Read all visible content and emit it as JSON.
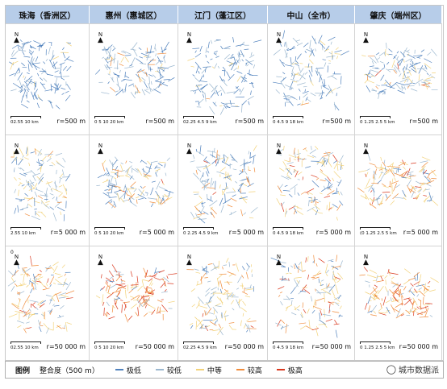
{
  "columns": [
    {
      "title": "珠海（香洲区）"
    },
    {
      "title": "惠州（惠城区）"
    },
    {
      "title": "江门（蓬江区）"
    },
    {
      "title": "中山（全市）"
    },
    {
      "title": "肇庆（端州区）"
    }
  ],
  "rows": [
    {
      "radius": "r=500 m",
      "scales": [
        "02.55    10 km",
        "0 5 10    20 km",
        "02.25 4.5 9 km",
        "0 4.5 9    18 km",
        "0 1.25 2.5 5 km"
      ]
    },
    {
      "radius": "r=5 000 m",
      "scales": [
        "2.55    10 km",
        "0 5 10    20 km",
        "0 2.25 4.5 9 km",
        "0 4.5 9    18 km",
        "(0 1.25 2.5 5 km"
      ]
    },
    {
      "radius": "r=50 000 m",
      "scales": [
        "02.55    10 km",
        "0 5 10    20 km",
        "02.25 4.5 9 km",
        "0 4.5 9    18 km",
        "0 1.25 2.5 5 km"
      ]
    }
  ],
  "radius_labels": {
    "c0r0": "r=500 m",
    "c1r0": "r=500 m",
    "c2r0": "r=500 m",
    "c3r0": "r=500 m",
    "c4r0": "r=500 m",
    "c0r1": "r=5 000 m",
    "c1r1": "r=5 000 m",
    "c2r1": "r=5 000 m",
    "c3r1": "r=5 000 m",
    "c4r1": "r=5 000 m",
    "c0r2": "r=50 000 m",
    "c1r2": "r=50 000 m",
    "c2r2": "r=50 000 m",
    "c3r2": "r=50 000 m",
    "c4r2": "r=50 000 m"
  },
  "north_label": "N",
  "zero_mark": "0",
  "legend": {
    "title": "图例",
    "subtitle": "整合度（500 m）",
    "items": [
      {
        "label": "极低",
        "color": "#4f81bd"
      },
      {
        "label": "较低",
        "color": "#9bb7cf"
      },
      {
        "label": "中等",
        "color": "#f2d27a"
      },
      {
        "label": "较高",
        "color": "#f08c3c"
      },
      {
        "label": "极高",
        "color": "#d9381e"
      }
    ]
  },
  "watermark": {
    "icon": "wechat-icon",
    "text": "城市数据派"
  }
}
